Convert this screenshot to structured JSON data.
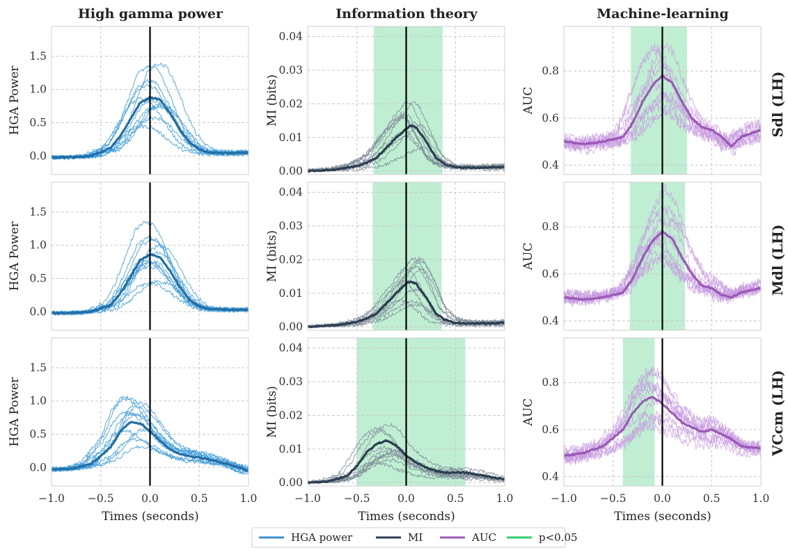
{
  "figure": {
    "column_titles": [
      "High gamma power",
      "Information theory",
      "Machine-learning"
    ],
    "row_labels": [
      "Sdl (LH)",
      "Mdl (LH)",
      "VCcm (LH)"
    ],
    "xlabel": "Times (seconds)",
    "ylabels": [
      "HGA Power",
      "MI (bits)",
      "AUC"
    ],
    "legend": [
      {
        "label": "HGA power",
        "color": "#3a8fd0"
      },
      {
        "label": "MI",
        "color": "#2c3e50"
      },
      {
        "label": "AUC",
        "color": "#9b59b6"
      },
      {
        "label": "p<0.05",
        "color": "#2ecc71"
      }
    ],
    "colors": {
      "hga_thin": "#3a9ad9",
      "hga_mean": "#236ea6",
      "mi_thin": "#7f8c98",
      "mi_mean": "#2c3e50",
      "auc_thin": "#c79be0",
      "auc_mean": "#9b59b6",
      "significance": "#b8eccd",
      "zero_line": "#000000"
    }
  },
  "chart_data": [
    {
      "type": "line",
      "row": "Sdl (LH)",
      "column": "High gamma power",
      "xlim": [
        -1.0,
        1.0
      ],
      "ylim": [
        -0.28,
        1.95
      ],
      "xticks": [
        -1.0,
        -0.5,
        0.0,
        0.5,
        1.0
      ],
      "yticks": [
        0.0,
        0.5,
        1.0,
        1.5
      ],
      "ytick_labels": [
        "0.0",
        "0.5",
        "1.0",
        "1.5"
      ],
      "xlabel": "",
      "ylabel": "HGA Power",
      "grid": true,
      "mean": {
        "x": [
          -1.0,
          -0.8,
          -0.6,
          -0.4,
          -0.3,
          -0.2,
          -0.1,
          0.0,
          0.1,
          0.2,
          0.3,
          0.4,
          0.5,
          0.6,
          0.8,
          1.0
        ],
        "y": [
          -0.02,
          -0.02,
          0.0,
          0.12,
          0.3,
          0.55,
          0.8,
          0.88,
          0.85,
          0.65,
          0.4,
          0.2,
          0.1,
          0.05,
          0.04,
          0.05
        ]
      },
      "significance": null
    },
    {
      "type": "line",
      "row": "Sdl (LH)",
      "column": "Information theory",
      "xlim": [
        -1.0,
        1.0
      ],
      "ylim": [
        -0.001,
        0.043
      ],
      "xticks": [
        -1.0,
        -0.5,
        0.0,
        0.5,
        1.0
      ],
      "yticks": [
        0.0,
        0.01,
        0.02,
        0.03,
        0.04
      ],
      "ytick_labels": [
        "0.00",
        "0.01",
        "0.02",
        "0.03",
        "0.04"
      ],
      "xlabel": "",
      "ylabel": "MI (bits)",
      "grid": true,
      "mean": {
        "x": [
          -1.0,
          -0.7,
          -0.5,
          -0.4,
          -0.3,
          -0.2,
          -0.1,
          0.0,
          0.05,
          0.1,
          0.2,
          0.3,
          0.4,
          0.5,
          0.7,
          1.0
        ],
        "y": [
          0.0,
          0.0005,
          0.0015,
          0.0025,
          0.004,
          0.007,
          0.01,
          0.0125,
          0.0135,
          0.013,
          0.009,
          0.004,
          0.002,
          0.0012,
          0.001,
          0.0012
        ]
      },
      "significance": [
        -0.33,
        0.37
      ]
    },
    {
      "type": "line",
      "row": "Sdl (LH)",
      "column": "Machine-learning",
      "xlim": [
        -1.0,
        1.0
      ],
      "ylim": [
        0.36,
        0.99
      ],
      "xticks": [
        -1.0,
        -0.5,
        0.0,
        0.5,
        1.0
      ],
      "yticks": [
        0.4,
        0.6,
        0.8
      ],
      "ytick_labels": [
        "0.4",
        "0.6",
        "0.8"
      ],
      "xlabel": "",
      "ylabel": "AUC",
      "grid": true,
      "mean": {
        "x": [
          -1.0,
          -0.8,
          -0.6,
          -0.4,
          -0.3,
          -0.2,
          -0.1,
          0.0,
          0.1,
          0.2,
          0.3,
          0.4,
          0.5,
          0.6,
          0.7,
          0.8,
          1.0
        ],
        "y": [
          0.5,
          0.49,
          0.5,
          0.52,
          0.58,
          0.67,
          0.74,
          0.78,
          0.75,
          0.67,
          0.6,
          0.56,
          0.55,
          0.52,
          0.48,
          0.52,
          0.55
        ]
      },
      "significance": [
        -0.32,
        0.25
      ]
    },
    {
      "type": "line",
      "row": "Mdl (LH)",
      "column": "High gamma power",
      "xlim": [
        -1.0,
        1.0
      ],
      "ylim": [
        -0.28,
        1.95
      ],
      "xticks": [
        -1.0,
        -0.5,
        0.0,
        0.5,
        1.0
      ],
      "yticks": [
        0.0,
        0.5,
        1.0,
        1.5
      ],
      "ytick_labels": [
        "0.0",
        "0.5",
        "1.0",
        "1.5"
      ],
      "xlabel": "",
      "ylabel": "HGA Power",
      "grid": true,
      "mean": {
        "x": [
          -1.0,
          -0.8,
          -0.6,
          -0.4,
          -0.3,
          -0.2,
          -0.1,
          0.0,
          0.1,
          0.2,
          0.3,
          0.4,
          0.5,
          0.6,
          0.8,
          1.0
        ],
        "y": [
          -0.02,
          -0.02,
          0.0,
          0.1,
          0.28,
          0.52,
          0.78,
          0.86,
          0.82,
          0.62,
          0.38,
          0.18,
          0.08,
          0.04,
          0.03,
          0.03
        ]
      },
      "significance": null
    },
    {
      "type": "line",
      "row": "Mdl (LH)",
      "column": "Information theory",
      "xlim": [
        -1.0,
        1.0
      ],
      "ylim": [
        -0.001,
        0.043
      ],
      "xticks": [
        -1.0,
        -0.5,
        0.0,
        0.5,
        1.0
      ],
      "yticks": [
        0.0,
        0.01,
        0.02,
        0.03,
        0.04
      ],
      "ytick_labels": [
        "0.00",
        "0.01",
        "0.02",
        "0.03",
        "0.04"
      ],
      "xlabel": "",
      "ylabel": "MI (bits)",
      "grid": true,
      "mean": {
        "x": [
          -1.0,
          -0.7,
          -0.5,
          -0.4,
          -0.3,
          -0.2,
          -0.1,
          0.0,
          0.05,
          0.1,
          0.2,
          0.3,
          0.4,
          0.5,
          0.7,
          1.0
        ],
        "y": [
          0.0,
          0.0005,
          0.0015,
          0.0025,
          0.004,
          0.007,
          0.01,
          0.013,
          0.0135,
          0.0128,
          0.009,
          0.004,
          0.002,
          0.0012,
          0.001,
          0.0012
        ]
      },
      "significance": [
        -0.34,
        0.36
      ]
    },
    {
      "type": "line",
      "row": "Mdl (LH)",
      "column": "Machine-learning",
      "xlim": [
        -1.0,
        1.0
      ],
      "ylim": [
        0.36,
        0.99
      ],
      "xticks": [
        -1.0,
        -0.5,
        0.0,
        0.5,
        1.0
      ],
      "yticks": [
        0.4,
        0.6,
        0.8
      ],
      "ytick_labels": [
        "0.4",
        "0.6",
        "0.8"
      ],
      "xlabel": "",
      "ylabel": "AUC",
      "grid": true,
      "mean": {
        "x": [
          -1.0,
          -0.8,
          -0.6,
          -0.4,
          -0.3,
          -0.2,
          -0.1,
          0.0,
          0.1,
          0.2,
          0.3,
          0.4,
          0.5,
          0.6,
          0.7,
          0.8,
          1.0
        ],
        "y": [
          0.5,
          0.49,
          0.5,
          0.52,
          0.58,
          0.67,
          0.74,
          0.78,
          0.75,
          0.67,
          0.6,
          0.55,
          0.54,
          0.51,
          0.5,
          0.52,
          0.54
        ]
      },
      "significance": [
        -0.33,
        0.23
      ]
    },
    {
      "type": "line",
      "row": "VCcm (LH)",
      "column": "High gamma power",
      "xlim": [
        -1.0,
        1.0
      ],
      "ylim": [
        -0.28,
        1.95
      ],
      "xticks": [
        -1.0,
        -0.5,
        0.0,
        0.5,
        1.0
      ],
      "yticks": [
        0.0,
        0.5,
        1.0,
        1.5
      ],
      "ytick_labels": [
        "0.0",
        "0.5",
        "1.0",
        "1.5"
      ],
      "xtick_labels": [
        "−1.0",
        "−0.5",
        "0.0",
        "0.5",
        "1.0"
      ],
      "xlabel": "Times (seconds)",
      "ylabel": "HGA Power",
      "grid": true,
      "mean": {
        "x": [
          -1.0,
          -0.8,
          -0.6,
          -0.4,
          -0.3,
          -0.2,
          -0.1,
          0.0,
          0.1,
          0.2,
          0.3,
          0.4,
          0.5,
          0.6,
          0.8,
          1.0
        ],
        "y": [
          -0.03,
          -0.02,
          0.05,
          0.3,
          0.55,
          0.68,
          0.66,
          0.55,
          0.4,
          0.28,
          0.2,
          0.17,
          0.15,
          0.12,
          0.05,
          -0.05
        ]
      },
      "significance": null
    },
    {
      "type": "line",
      "row": "VCcm (LH)",
      "column": "Information theory",
      "xlim": [
        -1.0,
        1.0
      ],
      "ylim": [
        -0.001,
        0.043
      ],
      "xticks": [
        -1.0,
        -0.5,
        0.0,
        0.5,
        1.0
      ],
      "yticks": [
        0.0,
        0.01,
        0.02,
        0.03,
        0.04
      ],
      "ytick_labels": [
        "0.00",
        "0.01",
        "0.02",
        "0.03",
        "0.04"
      ],
      "xtick_labels": [
        "−1.0",
        "−0.5",
        "0.0",
        "0.5",
        "1.0"
      ],
      "xlabel": "Times (seconds)",
      "ylabel": "MI (bits)",
      "grid": true,
      "mean": {
        "x": [
          -1.0,
          -0.8,
          -0.6,
          -0.5,
          -0.4,
          -0.3,
          -0.2,
          -0.1,
          0.0,
          0.1,
          0.2,
          0.3,
          0.4,
          0.6,
          0.8,
          1.0
        ],
        "y": [
          0.0,
          0.0003,
          0.002,
          0.005,
          0.009,
          0.0115,
          0.0125,
          0.011,
          0.008,
          0.006,
          0.0045,
          0.0035,
          0.003,
          0.003,
          0.002,
          0.001
        ]
      },
      "significance": [
        -0.5,
        0.6
      ]
    },
    {
      "type": "line",
      "row": "VCcm (LH)",
      "column": "Machine-learning",
      "xlim": [
        -1.0,
        1.0
      ],
      "ylim": [
        0.36,
        0.99
      ],
      "xticks": [
        -1.0,
        -0.5,
        0.0,
        0.5,
        1.0
      ],
      "yticks": [
        0.4,
        0.6,
        0.8
      ],
      "ytick_labels": [
        "0.4",
        "0.6",
        "0.8"
      ],
      "xtick_labels": [
        "−1.0",
        "−0.5",
        "0.0",
        "0.5",
        "1.0"
      ],
      "xlabel": "Times (seconds)",
      "ylabel": "AUC",
      "grid": true,
      "mean": {
        "x": [
          -1.0,
          -0.8,
          -0.6,
          -0.4,
          -0.3,
          -0.2,
          -0.1,
          0.0,
          0.1,
          0.2,
          0.3,
          0.4,
          0.5,
          0.6,
          0.7,
          0.8,
          1.0
        ],
        "y": [
          0.49,
          0.5,
          0.53,
          0.6,
          0.67,
          0.72,
          0.74,
          0.71,
          0.67,
          0.63,
          0.61,
          0.59,
          0.6,
          0.58,
          0.56,
          0.53,
          0.52
        ]
      },
      "significance": [
        -0.4,
        -0.08
      ]
    }
  ]
}
